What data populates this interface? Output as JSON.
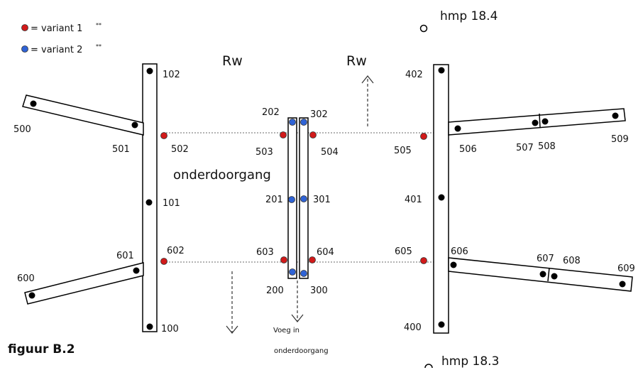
{
  "legend": {
    "variant1": "= variant 1",
    "variant1_sup": "**",
    "variant2": "= variant 2",
    "variant2_sup": "**",
    "variant1_color": "#d11a1a",
    "variant2_color": "#2f63d6"
  },
  "headings": {
    "rw_left": "Rw",
    "rw_right": "Rw",
    "underpass": "onderdoorgang",
    "joint_line1": "Voeg in",
    "joint_line2": "onderdoorgang",
    "figure": "figuur B.2",
    "hmp_top": "hmp 18.4",
    "hmp_bottom": "hmp 18.3"
  },
  "points": {
    "p100": "100",
    "p101": "101",
    "p102": "102",
    "p200": "200",
    "p201": "201",
    "p202": "202",
    "p300": "300",
    "p301": "301",
    "p302": "302",
    "p400": "400",
    "p401": "401",
    "p402": "402",
    "p500": "500",
    "p501": "501",
    "p502": "502",
    "p503": "503",
    "p504": "504",
    "p505": "505",
    "p506": "506",
    "p507": "507",
    "p508": "508",
    "p509": "509",
    "p600": "600",
    "p601": "601",
    "p602": "602",
    "p603": "603",
    "p604": "604",
    "p605": "605",
    "p606": "606",
    "p607": "607",
    "p608": "608",
    "p609": "609"
  }
}
